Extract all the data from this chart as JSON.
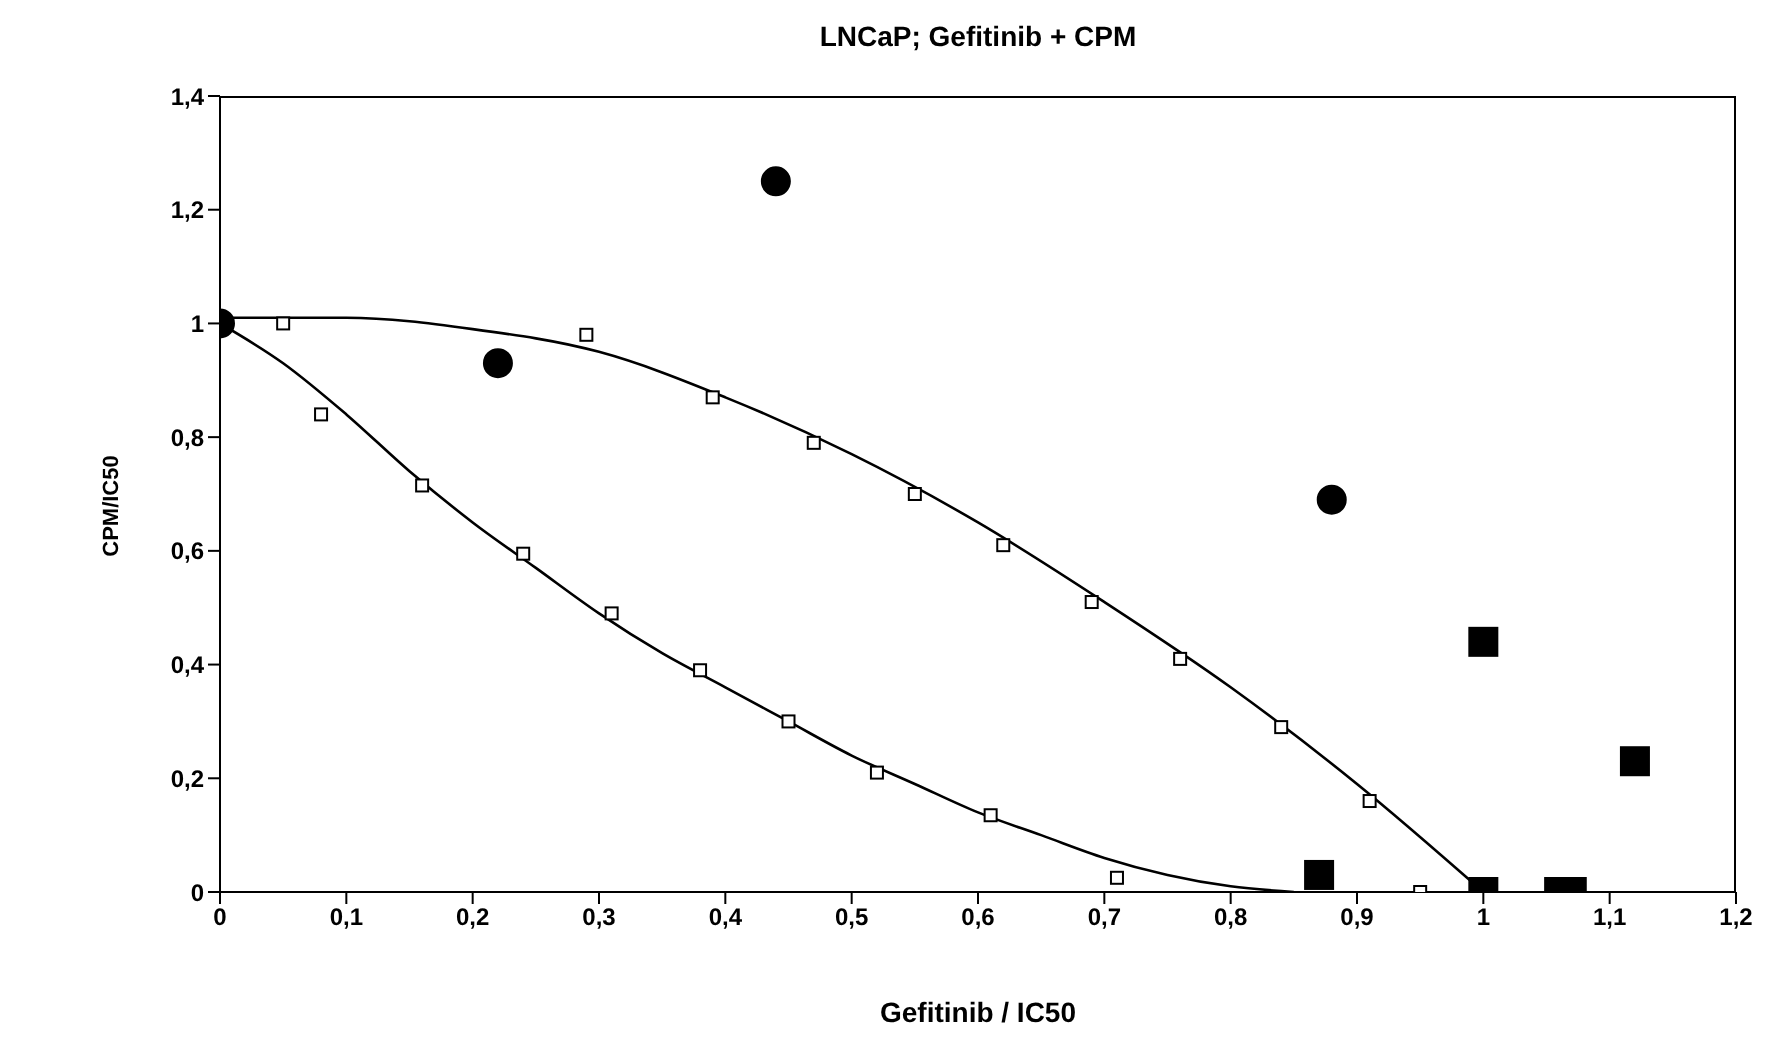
{
  "chart_data": {
    "type": "scatter",
    "title": "LNCaP; Gefitinib + CPM",
    "xlabel": "Gefitinib / IC50",
    "ylabel": "CPM/IC50",
    "xlim": [
      0,
      1.2
    ],
    "ylim": [
      0,
      1.4
    ],
    "xticks": [
      0,
      {
        "value": 0.1,
        "label": "0,1"
      },
      {
        "value": 0.2,
        "label": "0,2"
      },
      {
        "value": 0.3,
        "label": "0,3"
      },
      {
        "value": 0.4,
        "label": "0,4"
      },
      {
        "value": 0.5,
        "label": "0,5"
      },
      {
        "value": 0.6,
        "label": "0,6"
      },
      {
        "value": 0.7,
        "label": "0,7"
      },
      {
        "value": 0.8,
        "label": "0,8"
      },
      {
        "value": 0.9,
        "label": "0,9"
      },
      1,
      {
        "value": 1.1,
        "label": "1,1"
      },
      {
        "value": 1.2,
        "label": "1,2"
      }
    ],
    "yticks": [
      0,
      {
        "value": 0.2,
        "label": "0,2"
      },
      {
        "value": 0.4,
        "label": "0,4"
      },
      {
        "value": 0.6,
        "label": "0,6"
      },
      {
        "value": 0.8,
        "label": "0,8"
      },
      1,
      {
        "value": 1.2,
        "label": "1,2"
      },
      {
        "value": 1.4,
        "label": "1,4"
      }
    ],
    "grid": false,
    "series": [
      {
        "type": "line",
        "marker": "none",
        "line_style": "solid",
        "color": "#000000",
        "x": [
          0,
          0.1,
          0.2,
          0.3,
          0.4,
          0.5,
          0.6,
          0.7,
          0.8,
          0.9,
          1.0
        ],
        "values": [
          1.01,
          1.01,
          0.99,
          0.95,
          0.87,
          0.77,
          0.65,
          0.51,
          0.36,
          0.19,
          0
        ]
      },
      {
        "type": "line",
        "marker": "none",
        "line_style": "solid",
        "color": "#000000",
        "x": [
          0,
          0.05,
          0.1,
          0.15,
          0.2,
          0.25,
          0.3,
          0.35,
          0.4,
          0.45,
          0.5,
          0.55,
          0.6,
          0.65,
          0.7,
          0.75,
          0.8,
          0.85
        ],
        "values": [
          1,
          0.93,
          0.84,
          0.74,
          0.65,
          0.57,
          0.49,
          0.42,
          0.36,
          0.3,
          0.24,
          0.19,
          0.14,
          0.1,
          0.06,
          0.03,
          0.01,
          0
        ]
      },
      {
        "marker": "square",
        "color": "#ffffff",
        "x": [
          0.05,
          0.29,
          0.39,
          0.47,
          0.55,
          0.62,
          0.69,
          0.76,
          0.84,
          0.91,
          0.95
        ],
        "values": [
          1,
          0.98,
          0.87,
          0.79,
          0.7,
          0.61,
          0.51,
          0.41,
          0.29,
          0.16,
          0
        ]
      },
      {
        "marker": "square",
        "color": "#ffffff",
        "x": [
          0.08,
          0.16,
          0.24,
          0.31,
          0.38,
          0.45,
          0.52,
          0.61,
          0.71
        ],
        "values": [
          0.84,
          0.715,
          0.595,
          0.49,
          0.39,
          0.3,
          0.21,
          0.135,
          0.025
        ]
      },
      {
        "marker": "circle",
        "color": "#000000",
        "x": [
          0,
          0.22,
          0.44,
          0.88
        ],
        "values": [
          1,
          0.93,
          1.25,
          0.69
        ]
      },
      {
        "marker": "square",
        "color": "#000000",
        "x": [
          0.87,
          1.0,
          1.0,
          1.06,
          1.07,
          1.12
        ],
        "values": [
          0.03,
          0.44,
          0,
          0,
          0,
          0.23
        ]
      }
    ]
  }
}
